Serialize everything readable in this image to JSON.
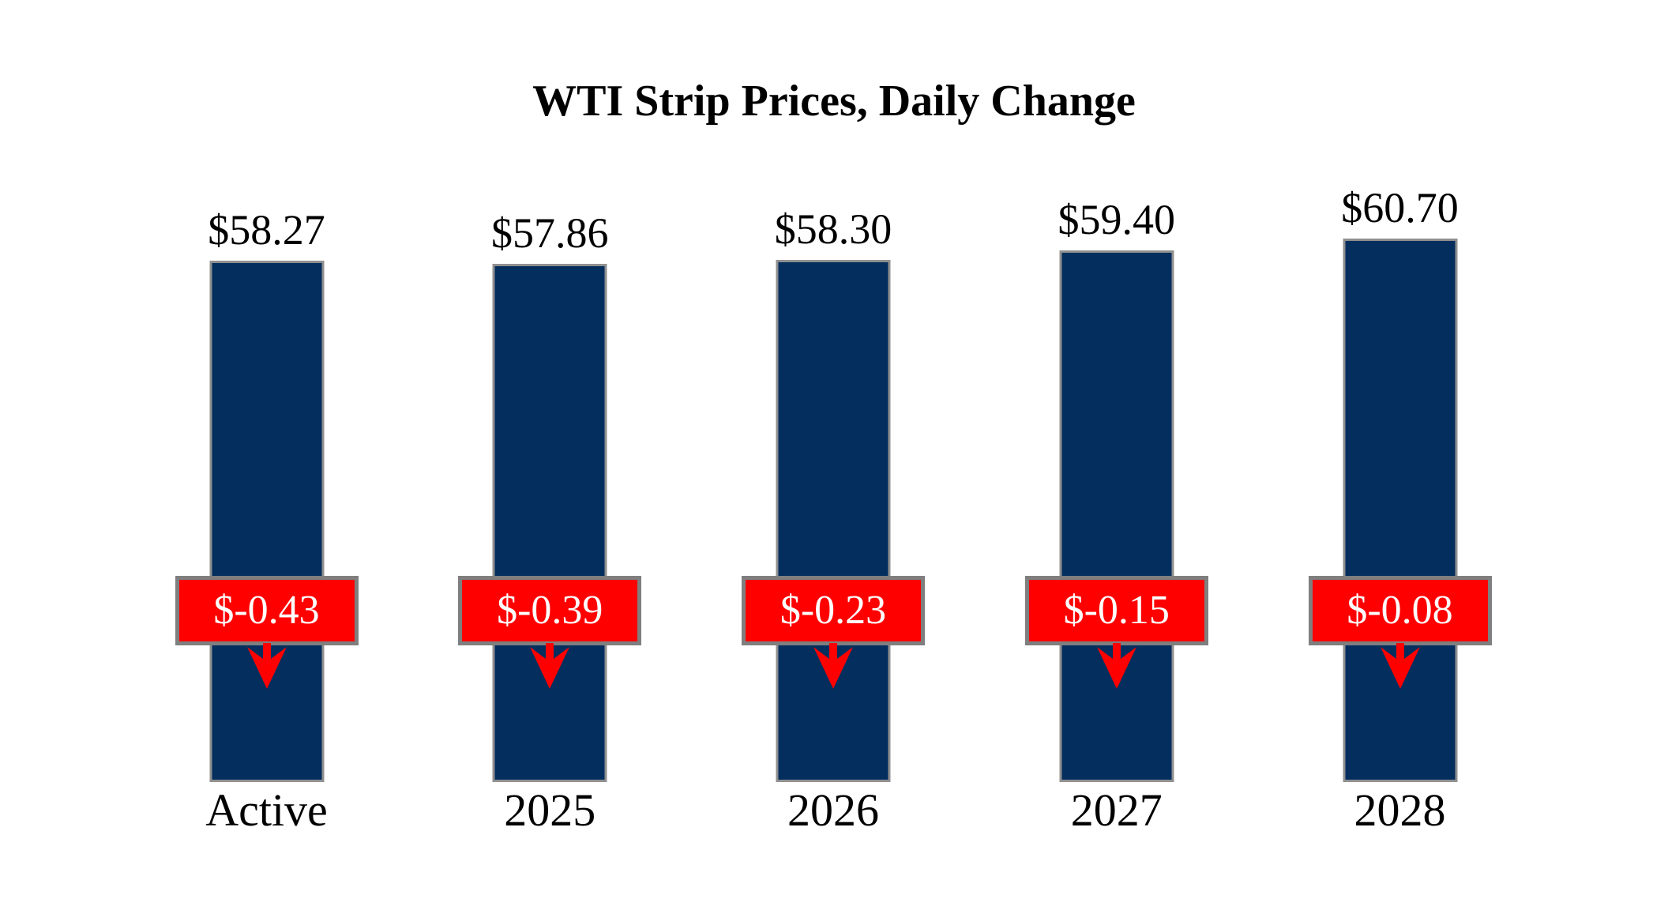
{
  "chart_data": {
    "type": "bar",
    "title": "WTI Strip Prices, Daily Change",
    "categories": [
      "Active",
      "2025",
      "2026",
      "2027",
      "2028"
    ],
    "values": [
      58.27,
      57.86,
      58.3,
      59.4,
      60.7
    ],
    "changes": [
      -0.43,
      -0.39,
      -0.23,
      -0.15,
      -0.08
    ],
    "ylim": [
      0,
      61
    ],
    "grid": false,
    "legend": false,
    "bars": [
      {
        "category": "Active",
        "price": 58.27,
        "price_label": "$58.27",
        "change": -0.43,
        "change_label": "$-0.43"
      },
      {
        "category": "2025",
        "price": 57.86,
        "price_label": "$57.86",
        "change": -0.39,
        "change_label": "$-0.39"
      },
      {
        "category": "2026",
        "price": 58.3,
        "price_label": "$58.30",
        "change": -0.23,
        "change_label": "$-0.23"
      },
      {
        "category": "2027",
        "price": 59.4,
        "price_label": "$59.40",
        "change": -0.15,
        "change_label": "$-0.15"
      },
      {
        "category": "2028",
        "price": 60.7,
        "price_label": "$60.70",
        "change": -0.08,
        "change_label": "$-0.08"
      }
    ],
    "colors": {
      "bar_fill": "#032E5E",
      "bar_border": "#909090",
      "badge_fill": "#FF0000",
      "badge_border": "#7F7F7F",
      "badge_text": "#FFFFFF",
      "label_text": "#000000"
    },
    "icons": {
      "change_direction": "down-arrow-icon"
    }
  }
}
